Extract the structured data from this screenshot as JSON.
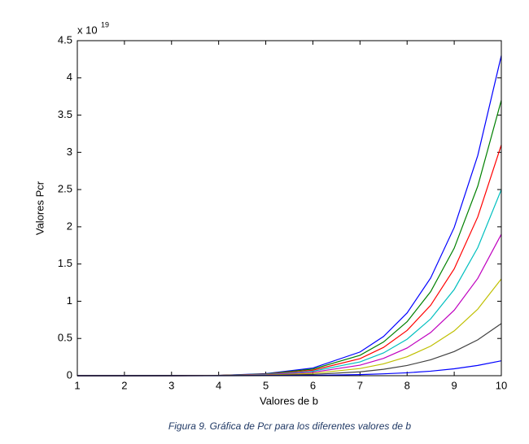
{
  "chart_data": {
    "type": "line",
    "ylabel": "Valores Pcr",
    "xlabel": "Valores de b",
    "y_multiplier": {
      "base": "x 10",
      "exponent": "19"
    },
    "x": [
      1,
      2,
      3,
      4,
      5,
      6,
      7,
      7.5,
      8,
      8.5,
      9,
      9.5,
      10
    ],
    "series": [
      {
        "color": "#0000ff",
        "values": [
          0,
          0,
          0.001,
          0.005,
          0.027,
          0.103,
          0.318,
          0.527,
          0.843,
          1.312,
          1.991,
          2.958,
          4.3
        ]
      },
      {
        "color": "#008000",
        "values": [
          0,
          0,
          0.001,
          0.004,
          0.024,
          0.089,
          0.274,
          0.453,
          0.725,
          1.129,
          1.713,
          2.546,
          3.7
        ]
      },
      {
        "color": "#ff0000",
        "values": [
          0,
          0,
          0,
          0.004,
          0.02,
          0.074,
          0.229,
          0.38,
          0.608,
          0.946,
          1.435,
          2.133,
          3.1
        ]
      },
      {
        "color": "#00bfbf",
        "values": [
          0,
          0,
          0,
          0.003,
          0.016,
          0.06,
          0.185,
          0.306,
          0.49,
          0.763,
          1.158,
          1.72,
          2.5
        ]
      },
      {
        "color": "#bf00bf",
        "values": [
          0,
          0,
          0,
          0.002,
          0.012,
          0.046,
          0.141,
          0.233,
          0.372,
          0.58,
          0.88,
          1.307,
          1.9
        ]
      },
      {
        "color": "#bfbf00",
        "values": [
          0,
          0,
          0,
          0.002,
          0.008,
          0.031,
          0.096,
          0.159,
          0.255,
          0.397,
          0.602,
          0.894,
          1.3
        ]
      },
      {
        "color": "#404040",
        "values": [
          0,
          0,
          0,
          0.001,
          0.004,
          0.017,
          0.052,
          0.086,
          0.137,
          0.214,
          0.324,
          0.482,
          0.7
        ]
      },
      {
        "color": "#0000ff",
        "values": [
          0,
          0,
          0,
          0,
          0.001,
          0.005,
          0.015,
          0.025,
          0.039,
          0.061,
          0.093,
          0.138,
          0.2
        ]
      }
    ],
    "xlim": [
      1,
      10
    ],
    "xticks": [
      1,
      2,
      3,
      4,
      5,
      6,
      7,
      8,
      9,
      10
    ],
    "ylim": [
      0,
      4.5
    ],
    "yticks": [
      0,
      0.5,
      1,
      1.5,
      2,
      2.5,
      3,
      3.5,
      4,
      4.5
    ]
  },
  "caption": "Figura 9. Gráfica de Pcr para los diferentes valores de b"
}
